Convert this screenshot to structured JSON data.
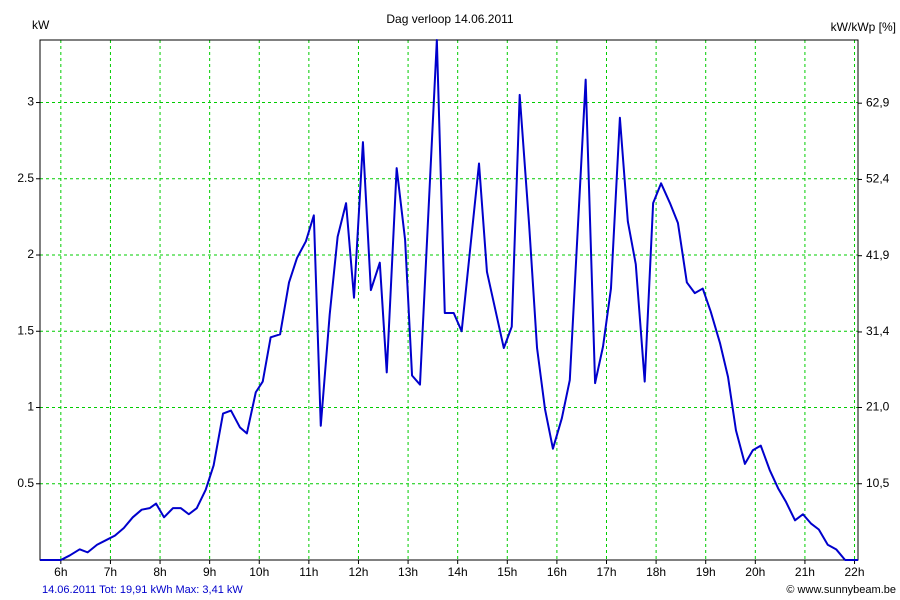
{
  "chart_data": {
    "type": "line",
    "title": "Dag  verloop 14.06.2011",
    "ylabel": "kW",
    "y2label": "kW/kWp [%]",
    "footer_left": "14.06.2011 Tot: 19,91 kWh Max: 3,41 kW",
    "footer_right": "© www.sunnybeam.be",
    "x": [
      5.58,
      6.0,
      6.18,
      6.38,
      6.54,
      6.73,
      6.91,
      7.09,
      7.27,
      7.45,
      7.63,
      7.79,
      7.92,
      8.08,
      8.26,
      8.42,
      8.58,
      8.74,
      8.92,
      9.08,
      9.27,
      9.43,
      9.61,
      9.75,
      9.93,
      10.07,
      10.23,
      10.42,
      10.6,
      10.76,
      10.94,
      11.1,
      11.24,
      11.42,
      11.58,
      11.75,
      11.91,
      12.09,
      12.25,
      12.43,
      12.57,
      12.77,
      12.94,
      13.08,
      13.24,
      13.58,
      13.74,
      13.92,
      14.08,
      14.43,
      14.59,
      14.93,
      15.09,
      15.25,
      15.44,
      15.6,
      15.76,
      15.92,
      16.1,
      16.26,
      16.58,
      16.77,
      16.93,
      17.09,
      17.27,
      17.43,
      17.59,
      17.77,
      17.94,
      18.1,
      18.28,
      18.44,
      18.62,
      18.78,
      18.94,
      19.1,
      19.29,
      19.45,
      19.61,
      19.79,
      19.95,
      20.11,
      20.29,
      20.46,
      20.62,
      20.8,
      20.96,
      21.12,
      21.28,
      21.46,
      21.63,
      21.81,
      22.07
    ],
    "series": [
      {
        "name": "kW",
        "color": "#0000cc",
        "values": [
          0,
          0,
          0.03,
          0.07,
          0.05,
          0.1,
          0.13,
          0.16,
          0.21,
          0.28,
          0.33,
          0.34,
          0.37,
          0.28,
          0.34,
          0.34,
          0.3,
          0.34,
          0.46,
          0.62,
          0.96,
          0.98,
          0.87,
          0.83,
          1.1,
          1.17,
          1.46,
          1.48,
          1.82,
          1.98,
          2.09,
          2.26,
          0.88,
          1.61,
          2.12,
          2.34,
          1.72,
          2.74,
          1.77,
          1.95,
          1.23,
          2.57,
          2.1,
          1.21,
          1.15,
          3.41,
          1.62,
          1.62,
          1.5,
          2.6,
          1.89,
          1.39,
          1.53,
          3.05,
          2.2,
          1.39,
          0.99,
          0.73,
          0.93,
          1.18,
          3.15,
          1.16,
          1.4,
          1.78,
          2.9,
          2.22,
          1.94,
          1.17,
          2.34,
          2.47,
          2.34,
          2.21,
          1.82,
          1.75,
          1.78,
          1.63,
          1.42,
          1.2,
          0.85,
          0.63,
          0.72,
          0.75,
          0.59,
          0.47,
          0.38,
          0.26,
          0.3,
          0.24,
          0.2,
          0.1,
          0.07,
          0,
          0
        ]
      }
    ],
    "xlim": [
      5.58,
      22.07
    ],
    "xticks": [
      {
        "value": 6,
        "label": "6h"
      },
      {
        "value": 7,
        "label": "7h"
      },
      {
        "value": 8,
        "label": "8h"
      },
      {
        "value": 9,
        "label": "9h"
      },
      {
        "value": 10,
        "label": "10h"
      },
      {
        "value": 11,
        "label": "11h"
      },
      {
        "value": 12,
        "label": "12h"
      },
      {
        "value": 13,
        "label": "13h"
      },
      {
        "value": 14,
        "label": "14h"
      },
      {
        "value": 15,
        "label": "15h"
      },
      {
        "value": 16,
        "label": "16h"
      },
      {
        "value": 17,
        "label": "17h"
      },
      {
        "value": 18,
        "label": "18h"
      },
      {
        "value": 19,
        "label": "19h"
      },
      {
        "value": 20,
        "label": "20h"
      },
      {
        "value": 21,
        "label": "21h"
      },
      {
        "value": 22,
        "label": "22h"
      }
    ],
    "ylim": [
      0,
      3.41
    ],
    "yticks": [
      0.5,
      1,
      1.5,
      2,
      2.5,
      3
    ],
    "y2lim": [
      0,
      71.6
    ],
    "y2ticks": [
      {
        "value": 10.5,
        "label": "10,5"
      },
      {
        "value": 21.0,
        "label": "21,0"
      },
      {
        "value": 31.4,
        "label": "31,4"
      },
      {
        "value": 41.9,
        "label": "41,9"
      },
      {
        "value": 52.4,
        "label": "52,4"
      },
      {
        "value": 62.9,
        "label": "62,9"
      }
    ],
    "grid": true
  }
}
